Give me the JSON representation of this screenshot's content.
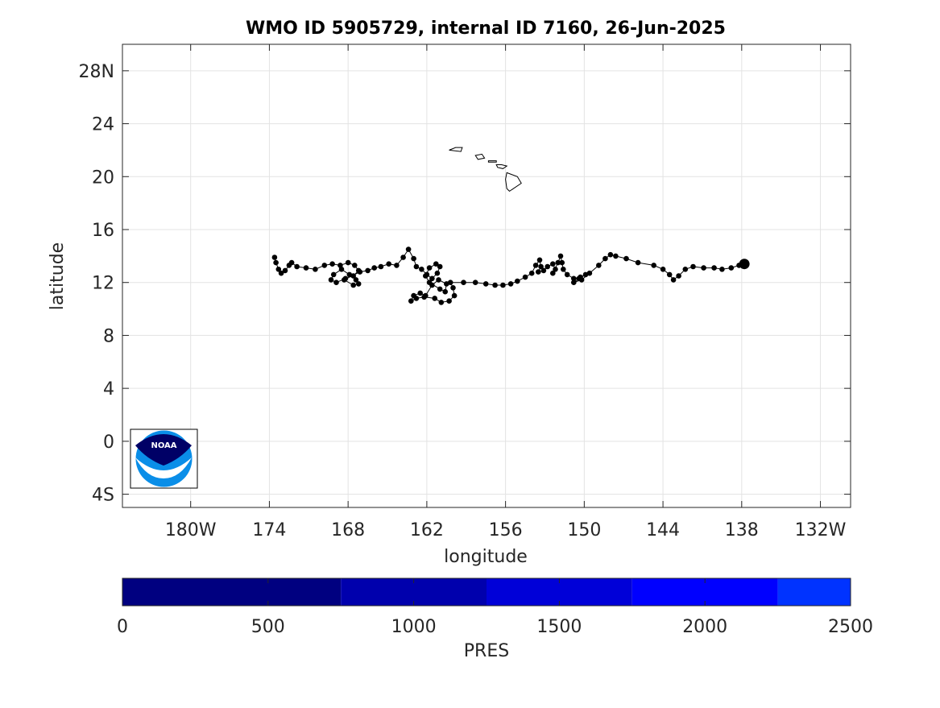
{
  "title": "WMO ID 5905729, internal ID 7160, 26-Jun-2025",
  "map": {
    "xlabel": "longitude",
    "ylabel": "latitude",
    "x_ticks": [
      {
        "lon": -180,
        "label": "180W"
      },
      {
        "lon": -174,
        "label": "174"
      },
      {
        "lon": -168,
        "label": "168"
      },
      {
        "lon": -162,
        "label": "162"
      },
      {
        "lon": -156,
        "label": "156"
      },
      {
        "lon": -150,
        "label": "150"
      },
      {
        "lon": -144,
        "label": "144"
      },
      {
        "lon": -138,
        "label": "138"
      },
      {
        "lon": -132,
        "label": "132W"
      }
    ],
    "y_ticks": [
      {
        "lat": -4,
        "label": "4S"
      },
      {
        "lat": 0,
        "label": "0"
      },
      {
        "lat": 4,
        "label": "4"
      },
      {
        "lat": 8,
        "label": "8"
      },
      {
        "lat": 12,
        "label": "12"
      },
      {
        "lat": 16,
        "label": "16"
      },
      {
        "lat": 20,
        "label": "20"
      },
      {
        "lat": 24,
        "label": "24"
      },
      {
        "lat": 28,
        "label": "28N"
      }
    ],
    "lon_range": [
      -185.2,
      -129.7
    ],
    "lat_range": [
      -5,
      30
    ],
    "grid": true,
    "logo": "noaa-logo",
    "logo_text": "NOAA"
  },
  "chart_data": {
    "type": "scatter",
    "lon_range": [
      -185.2,
      -129.7
    ],
    "lat_range": [
      -5,
      30
    ],
    "track": [
      [
        -173.6,
        13.9
      ],
      [
        -173.5,
        13.5
      ],
      [
        -173.3,
        13.0
      ],
      [
        -173.1,
        12.7
      ],
      [
        -172.8,
        12.9
      ],
      [
        -172.5,
        13.3
      ],
      [
        -172.3,
        13.5
      ],
      [
        -171.9,
        13.2
      ],
      [
        -171.2,
        13.1
      ],
      [
        -170.5,
        13.0
      ],
      [
        -169.8,
        13.3
      ],
      [
        -169.2,
        13.4
      ],
      [
        -168.6,
        13.3
      ],
      [
        -168.0,
        13.5
      ],
      [
        -167.5,
        13.3
      ],
      [
        -167.2,
        12.9
      ],
      [
        -167.6,
        12.5
      ],
      [
        -168.2,
        12.3
      ],
      [
        -168.9,
        12.0
      ],
      [
        -169.3,
        12.2
      ],
      [
        -169.1,
        12.6
      ],
      [
        -168.5,
        13.0
      ],
      [
        -167.9,
        12.6
      ],
      [
        -167.4,
        12.2
      ],
      [
        -167.2,
        11.9
      ],
      [
        -167.6,
        11.8
      ],
      [
        -168.3,
        12.2
      ],
      [
        -167.1,
        12.8
      ],
      [
        -166.5,
        12.9
      ],
      [
        -166.0,
        13.1
      ],
      [
        -165.5,
        13.2
      ],
      [
        -164.9,
        13.4
      ],
      [
        -164.3,
        13.3
      ],
      [
        -163.8,
        13.9
      ],
      [
        -163.4,
        14.5
      ],
      [
        -163.0,
        13.8
      ],
      [
        -162.8,
        13.2
      ],
      [
        -162.4,
        13.0
      ],
      [
        -162.0,
        12.6
      ],
      [
        -161.6,
        12.3
      ],
      [
        -161.2,
        12.7
      ],
      [
        -161.0,
        13.2
      ],
      [
        -161.3,
        13.4
      ],
      [
        -161.8,
        13.1
      ],
      [
        -162.1,
        12.5
      ],
      [
        -161.8,
        12.0
      ],
      [
        -161.0,
        11.5
      ],
      [
        -160.6,
        11.3
      ],
      [
        -160.5,
        11.9
      ],
      [
        -161.1,
        12.2
      ],
      [
        -161.6,
        11.8
      ],
      [
        -162.1,
        11.0
      ],
      [
        -162.5,
        11.2
      ],
      [
        -163.0,
        11.0
      ],
      [
        -163.2,
        10.6
      ],
      [
        -162.8,
        10.8
      ],
      [
        -162.2,
        10.9
      ],
      [
        -161.4,
        10.8
      ],
      [
        -160.9,
        10.5
      ],
      [
        -160.3,
        10.6
      ],
      [
        -159.9,
        11.0
      ],
      [
        -160.0,
        11.6
      ],
      [
        -160.2,
        12.0
      ],
      [
        -159.2,
        12.0
      ],
      [
        -158.3,
        12.0
      ],
      [
        -157.5,
        11.9
      ],
      [
        -156.8,
        11.8
      ],
      [
        -156.2,
        11.8
      ],
      [
        -155.6,
        11.9
      ],
      [
        -155.1,
        12.1
      ],
      [
        -154.5,
        12.4
      ],
      [
        -154.0,
        12.7
      ],
      [
        -153.7,
        13.3
      ],
      [
        -153.4,
        13.7
      ],
      [
        -153.3,
        13.2
      ],
      [
        -153.5,
        12.8
      ],
      [
        -153.1,
        12.9
      ],
      [
        -152.8,
        13.2
      ],
      [
        -152.4,
        13.4
      ],
      [
        -152.2,
        13.0
      ],
      [
        -152.4,
        12.7
      ],
      [
        -152.0,
        13.5
      ],
      [
        -151.8,
        14.0
      ],
      [
        -151.7,
        13.5
      ],
      [
        -151.6,
        13.0
      ],
      [
        -151.3,
        12.6
      ],
      [
        -150.8,
        12.3
      ],
      [
        -150.3,
        12.4
      ],
      [
        -149.9,
        12.6
      ],
      [
        -150.4,
        12.3
      ],
      [
        -150.8,
        12.0
      ],
      [
        -150.2,
        12.2
      ],
      [
        -149.6,
        12.7
      ],
      [
        -148.9,
        13.3
      ],
      [
        -148.4,
        13.8
      ],
      [
        -148.0,
        14.1
      ],
      [
        -147.6,
        14.0
      ],
      [
        -146.8,
        13.8
      ],
      [
        -145.9,
        13.5
      ],
      [
        -144.7,
        13.3
      ],
      [
        -144.0,
        13.0
      ],
      [
        -143.5,
        12.6
      ],
      [
        -143.2,
        12.2
      ],
      [
        -142.8,
        12.5
      ],
      [
        -142.3,
        13.0
      ],
      [
        -141.7,
        13.2
      ],
      [
        -140.9,
        13.1
      ],
      [
        -140.1,
        13.1
      ],
      [
        -139.5,
        13.0
      ],
      [
        -138.8,
        13.1
      ],
      [
        -138.2,
        13.3
      ],
      [
        -137.8,
        13.4
      ]
    ],
    "last_position": [
      -137.8,
      13.4
    ],
    "hawaii_islands": [
      [
        [
          -160.3,
          22.0
        ],
        [
          -159.8,
          22.2
        ],
        [
          -159.3,
          22.2
        ],
        [
          -159.4,
          21.9
        ],
        [
          -160.3,
          22.0
        ]
      ],
      [
        [
          -158.3,
          21.6
        ],
        [
          -157.8,
          21.7
        ],
        [
          -157.6,
          21.4
        ],
        [
          -158.1,
          21.3
        ],
        [
          -158.3,
          21.6
        ]
      ],
      [
        [
          -157.3,
          21.2
        ],
        [
          -156.7,
          21.2
        ],
        [
          -156.7,
          21.1
        ],
        [
          -157.3,
          21.1
        ],
        [
          -157.3,
          21.2
        ]
      ],
      [
        [
          -156.7,
          20.9
        ],
        [
          -156.3,
          20.9
        ],
        [
          -155.9,
          20.8
        ],
        [
          -156.2,
          20.6
        ],
        [
          -156.6,
          20.7
        ],
        [
          -156.7,
          20.9
        ]
      ],
      [
        [
          -155.9,
          20.3
        ],
        [
          -155.1,
          20.0
        ],
        [
          -154.8,
          19.5
        ],
        [
          -155.7,
          18.9
        ],
        [
          -155.9,
          19.1
        ],
        [
          -156.0,
          19.8
        ],
        [
          -155.9,
          20.3
        ]
      ]
    ],
    "colorbar": {
      "label": "PRES",
      "ticks": [
        0,
        500,
        1000,
        1500,
        2000,
        2500
      ],
      "range": [
        0,
        2500
      ],
      "segments": [
        {
          "from": 0,
          "to": 750,
          "color": "#000080"
        },
        {
          "from": 750,
          "to": 1250,
          "color": "#0000ad"
        },
        {
          "from": 1250,
          "to": 1750,
          "color": "#0000d8"
        },
        {
          "from": 1750,
          "to": 2250,
          "color": "#0000ff"
        },
        {
          "from": 2250,
          "to": 2500,
          "color": "#0033ff"
        }
      ]
    }
  }
}
